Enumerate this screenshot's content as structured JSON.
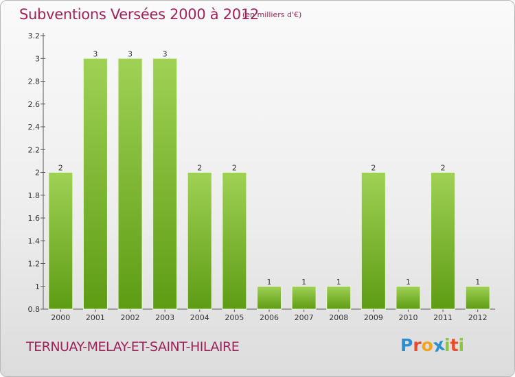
{
  "title": "Subventions Versées 2000 à 2012",
  "subtitle": "(en milliers d'€)",
  "commune": "TERNUAY-MELAY-ET-SAINT-HILAIRE",
  "logo": {
    "letters": [
      "P",
      "r",
      "o",
      "x",
      "i",
      "t",
      "i"
    ],
    "colors": [
      "#2a8fd0",
      "#e94b2a",
      "#f3a31c",
      "#2a8fd0",
      "#8cc63f",
      "#e94b2a",
      "#8cc63f"
    ]
  },
  "colors": {
    "bar_top": "#9fd155",
    "bar_bottom": "#5e9c14",
    "title": "#a0225a"
  },
  "chart_data": {
    "type": "bar",
    "title": "Subventions Versées 2000 à 2012",
    "subtitle": "(en milliers d'€)",
    "xlabel": "",
    "ylabel": "",
    "categories": [
      "2000",
      "2001",
      "2002",
      "2003",
      "2004",
      "2005",
      "2006",
      "2007",
      "2008",
      "2009",
      "2010",
      "2011",
      "2012"
    ],
    "values": [
      2,
      3,
      3,
      3,
      2,
      2,
      1,
      1,
      1,
      2,
      1,
      2,
      1
    ],
    "data_labels": [
      "2",
      "3",
      "3",
      "3",
      "2",
      "2",
      "1",
      "1",
      "1",
      "2",
      "1",
      "2",
      "1"
    ],
    "ylim": [
      0.8,
      3.2
    ],
    "yticks": [
      0.8,
      1,
      1.2,
      1.4,
      1.6,
      1.8,
      2,
      2.2,
      2.4,
      2.6,
      2.8,
      3,
      3.2
    ],
    "ytick_labels": [
      "0.8",
      "1",
      "1.2",
      "1.4",
      "1.6",
      "1.8",
      "2",
      "2.2",
      "2.4",
      "2.6",
      "2.8",
      "3",
      "3.2"
    ],
    "grid": false,
    "legend": "none"
  }
}
